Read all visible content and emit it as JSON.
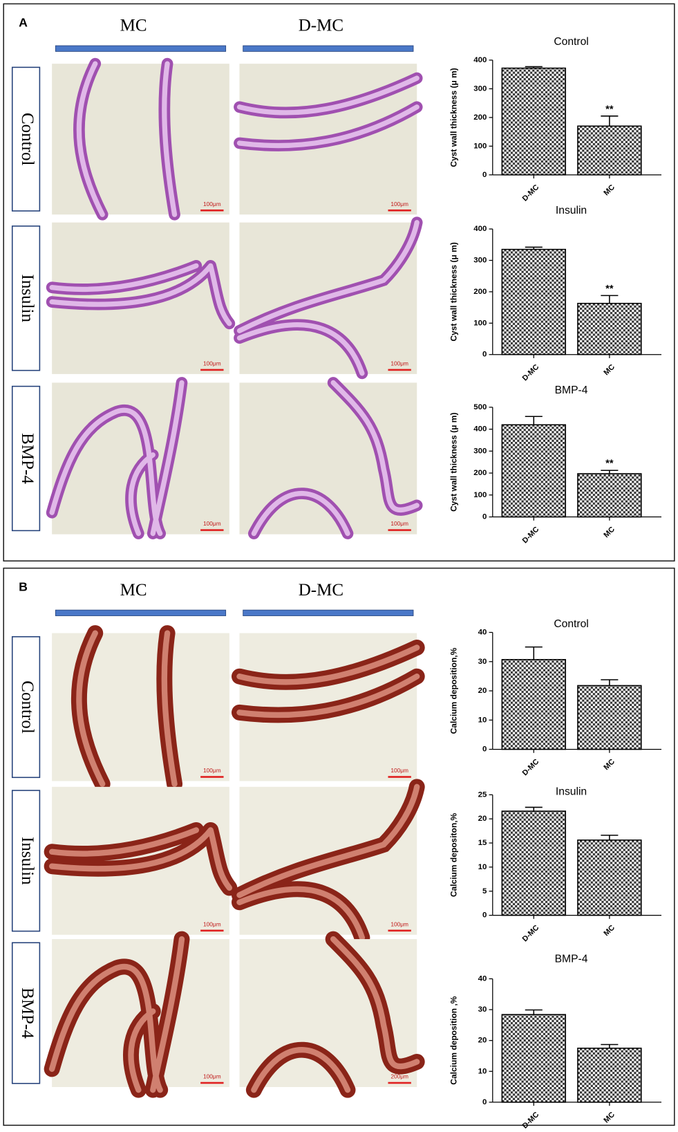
{
  "panels": [
    {
      "label": "A",
      "columns": [
        "MC",
        "D-MC"
      ],
      "rows": [
        "Control",
        "Insulin",
        "BMP-4"
      ],
      "scale_bars": [
        "100μm",
        "100μm",
        "100μm",
        "100μm",
        "100μm",
        "100μm"
      ]
    },
    {
      "label": "B",
      "columns": [
        "MC",
        "D-MC"
      ],
      "rows": [
        "Control",
        "Insulin",
        "BMP-4"
      ],
      "scale_bars": [
        "100μm",
        "100μm",
        "100μm",
        "100μm",
        "100μm",
        "200μm"
      ]
    }
  ],
  "chart_data": [
    {
      "type": "bar",
      "title": "Control",
      "ylabel": "Cyst wall thickness (μ m)",
      "categories": [
        "D-MC",
        "MC"
      ],
      "values": [
        372,
        170
      ],
      "errors": [
        5,
        35
      ],
      "annotations": [
        null,
        "**"
      ],
      "ylim": [
        0,
        400
      ],
      "yticks": [
        0,
        100,
        200,
        300,
        400
      ]
    },
    {
      "type": "bar",
      "title": "Insulin",
      "ylabel": "Cyst wall thickness (μ m)",
      "categories": [
        "D-MC",
        "MC"
      ],
      "values": [
        335,
        163
      ],
      "errors": [
        7,
        25
      ],
      "annotations": [
        null,
        "**"
      ],
      "ylim": [
        0,
        400
      ],
      "yticks": [
        0,
        100,
        200,
        300,
        400
      ]
    },
    {
      "type": "bar",
      "title": "BMP-4",
      "ylabel": "Cyst wall thickness (μ m)",
      "categories": [
        "D-MC",
        "MC"
      ],
      "values": [
        420,
        197
      ],
      "errors": [
        38,
        15
      ],
      "annotations": [
        null,
        "**"
      ],
      "ylim": [
        0,
        500
      ],
      "yticks": [
        0,
        100,
        200,
        300,
        400,
        500
      ]
    },
    {
      "type": "bar",
      "title": "Control",
      "ylabel": "Calcium deposition,%",
      "categories": [
        "D-MC",
        "MC"
      ],
      "values": [
        30.7,
        21.8
      ],
      "errors": [
        4.3,
        2
      ],
      "ylim": [
        0,
        40
      ],
      "yticks": [
        0,
        10,
        20,
        30,
        40
      ]
    },
    {
      "type": "bar",
      "title": "Insulin",
      "ylabel": "Calcium depositon,%",
      "categories": [
        "D-MC",
        "MC"
      ],
      "values": [
        21.6,
        15.6
      ],
      "errors": [
        0.8,
        1
      ],
      "ylim": [
        0,
        25
      ],
      "yticks": [
        0,
        5,
        10,
        15,
        20,
        25
      ]
    },
    {
      "type": "bar",
      "title": "BMP-4",
      "ylabel": "Calcium deposition ,%",
      "categories": [
        "D-MC",
        "MC"
      ],
      "values": [
        28.4,
        17.5
      ],
      "errors": [
        1.5,
        1.2
      ],
      "ylim": [
        0,
        40
      ],
      "yticks": [
        0,
        10,
        20,
        30,
        40
      ]
    }
  ]
}
